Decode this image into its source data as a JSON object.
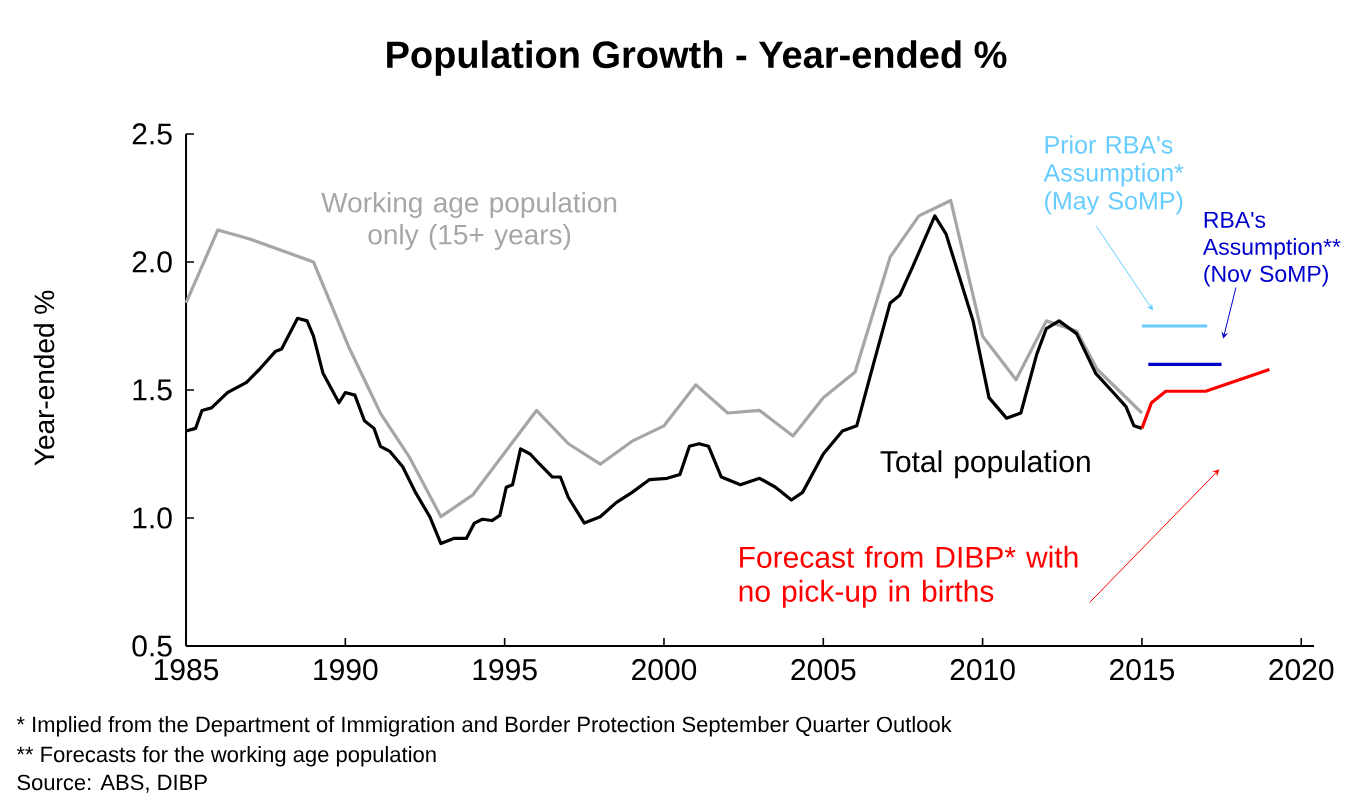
{
  "chart_data": {
    "type": "line",
    "title": "Population Growth - Year-ended %",
    "ylabel": "Year-ended %",
    "xlim": [
      1985,
      2020.4
    ],
    "xticks": [
      1985,
      1990,
      1995,
      2000,
      2005,
      2010,
      2015,
      2020
    ],
    "ylim": [
      0.5,
      2.5
    ],
    "yticks": [
      0.5,
      {
        "value": 1.0,
        "label": "1.0"
      },
      1.5,
      {
        "value": 2.0,
        "label": "2.0"
      },
      2.5
    ],
    "series": [
      {
        "name": "Working age population only (15+ years)",
        "color": "#a6a6a6",
        "x": [
          1985.0,
          1986.0,
          1987.0,
          1989.0,
          1990.1,
          1991.1,
          1992.0,
          1993.0,
          1994.0,
          1996.0,
          1997.0,
          1998.0,
          1999.0,
          2000.0,
          2001.0,
          2002.0,
          2003.0,
          2004.05,
          2005.0,
          2006.0,
          2007.1,
          2008.0,
          2009.0,
          2010.0,
          2011.05,
          2012.0,
          2012.95,
          2013.6,
          2015.0
        ],
        "values": [
          1.84,
          2.125,
          2.09,
          2.0,
          1.67,
          1.41,
          1.24,
          1.005,
          1.09,
          1.42,
          1.29,
          1.21,
          1.3,
          1.36,
          1.52,
          1.41,
          1.42,
          1.32,
          1.47,
          1.57,
          2.02,
          2.18,
          2.24,
          1.71,
          1.54,
          1.77,
          1.73,
          1.58,
          1.41
        ]
      },
      {
        "name": "Total population",
        "color": "#000000",
        "x": [
          1985.0,
          1985.3,
          1985.5,
          1985.8,
          1986.3,
          1986.9,
          1987.3,
          1987.8,
          1988.0,
          1988.5,
          1988.8,
          1989.0,
          1989.3,
          1989.8,
          1990.0,
          1990.3,
          1990.6,
          1990.9,
          1991.1,
          1991.4,
          1991.8,
          1992.2,
          1992.65,
          1993.0,
          1993.4,
          1993.8,
          1994.05,
          1994.3,
          1994.6,
          1994.85,
          1995.05,
          1995.25,
          1995.5,
          1995.8,
          1996.1,
          1996.5,
          1996.75,
          1997.0,
          1997.5,
          1998.0,
          1998.5,
          1999.0,
          1999.55,
          2000.1,
          2000.5,
          2000.8,
          2001.1,
          2001.4,
          2001.8,
          2002.4,
          2003.0,
          2003.5,
          2004.0,
          2004.35,
          2005.0,
          2005.6,
          2006.05,
          2006.55,
          2007.1,
          2007.4,
          2007.8,
          2008.5,
          2008.85,
          2009.7,
          2010.2,
          2010.75,
          2011.2,
          2011.7,
          2012.0,
          2012.4,
          2012.95,
          2013.55,
          2014.1,
          2014.5,
          2014.75,
          2015.0
        ],
        "values": [
          1.34,
          1.35,
          1.42,
          1.43,
          1.49,
          1.53,
          1.58,
          1.65,
          1.66,
          1.78,
          1.77,
          1.71,
          1.565,
          1.45,
          1.49,
          1.48,
          1.38,
          1.35,
          1.28,
          1.26,
          1.2,
          1.1,
          1.005,
          0.9,
          0.92,
          0.92,
          0.98,
          0.995,
          0.99,
          1.01,
          1.12,
          1.13,
          1.27,
          1.25,
          1.21,
          1.16,
          1.16,
          1.08,
          0.98,
          1.005,
          1.06,
          1.1,
          1.15,
          1.155,
          1.17,
          1.28,
          1.29,
          1.28,
          1.16,
          1.13,
          1.155,
          1.12,
          1.07,
          1.1,
          1.25,
          1.34,
          1.36,
          1.59,
          1.84,
          1.87,
          1.98,
          2.18,
          2.11,
          1.77,
          1.47,
          1.39,
          1.41,
          1.64,
          1.74,
          1.77,
          1.72,
          1.565,
          1.49,
          1.435,
          1.36,
          1.35
        ]
      },
      {
        "name": "Forecast from DIBP* with no pick-up in births",
        "color": "#ff0000",
        "x": [
          2015.0,
          2015.3,
          2015.75,
          2017.0,
          2019.0
        ],
        "values": [
          1.35,
          1.45,
          1.495,
          1.495,
          1.58
        ]
      },
      {
        "name": "Prior RBA's Assumption* (May SoMP)",
        "color": "#66ccff",
        "x": [
          2015.0,
          2017.05
        ],
        "values": [
          1.75,
          1.75
        ]
      },
      {
        "name": "RBA's Assumption** (Nov SoMP)",
        "color": "#0000cc",
        "x": [
          2015.2,
          2017.5
        ],
        "values": [
          1.6,
          1.6
        ]
      }
    ],
    "annotations": [
      "*  Implied from the Department of Immigration and Border Protection September Quarter Outlook",
      "** Forecasts for the working age population",
      "Source: ABS, DIBP"
    ]
  }
}
